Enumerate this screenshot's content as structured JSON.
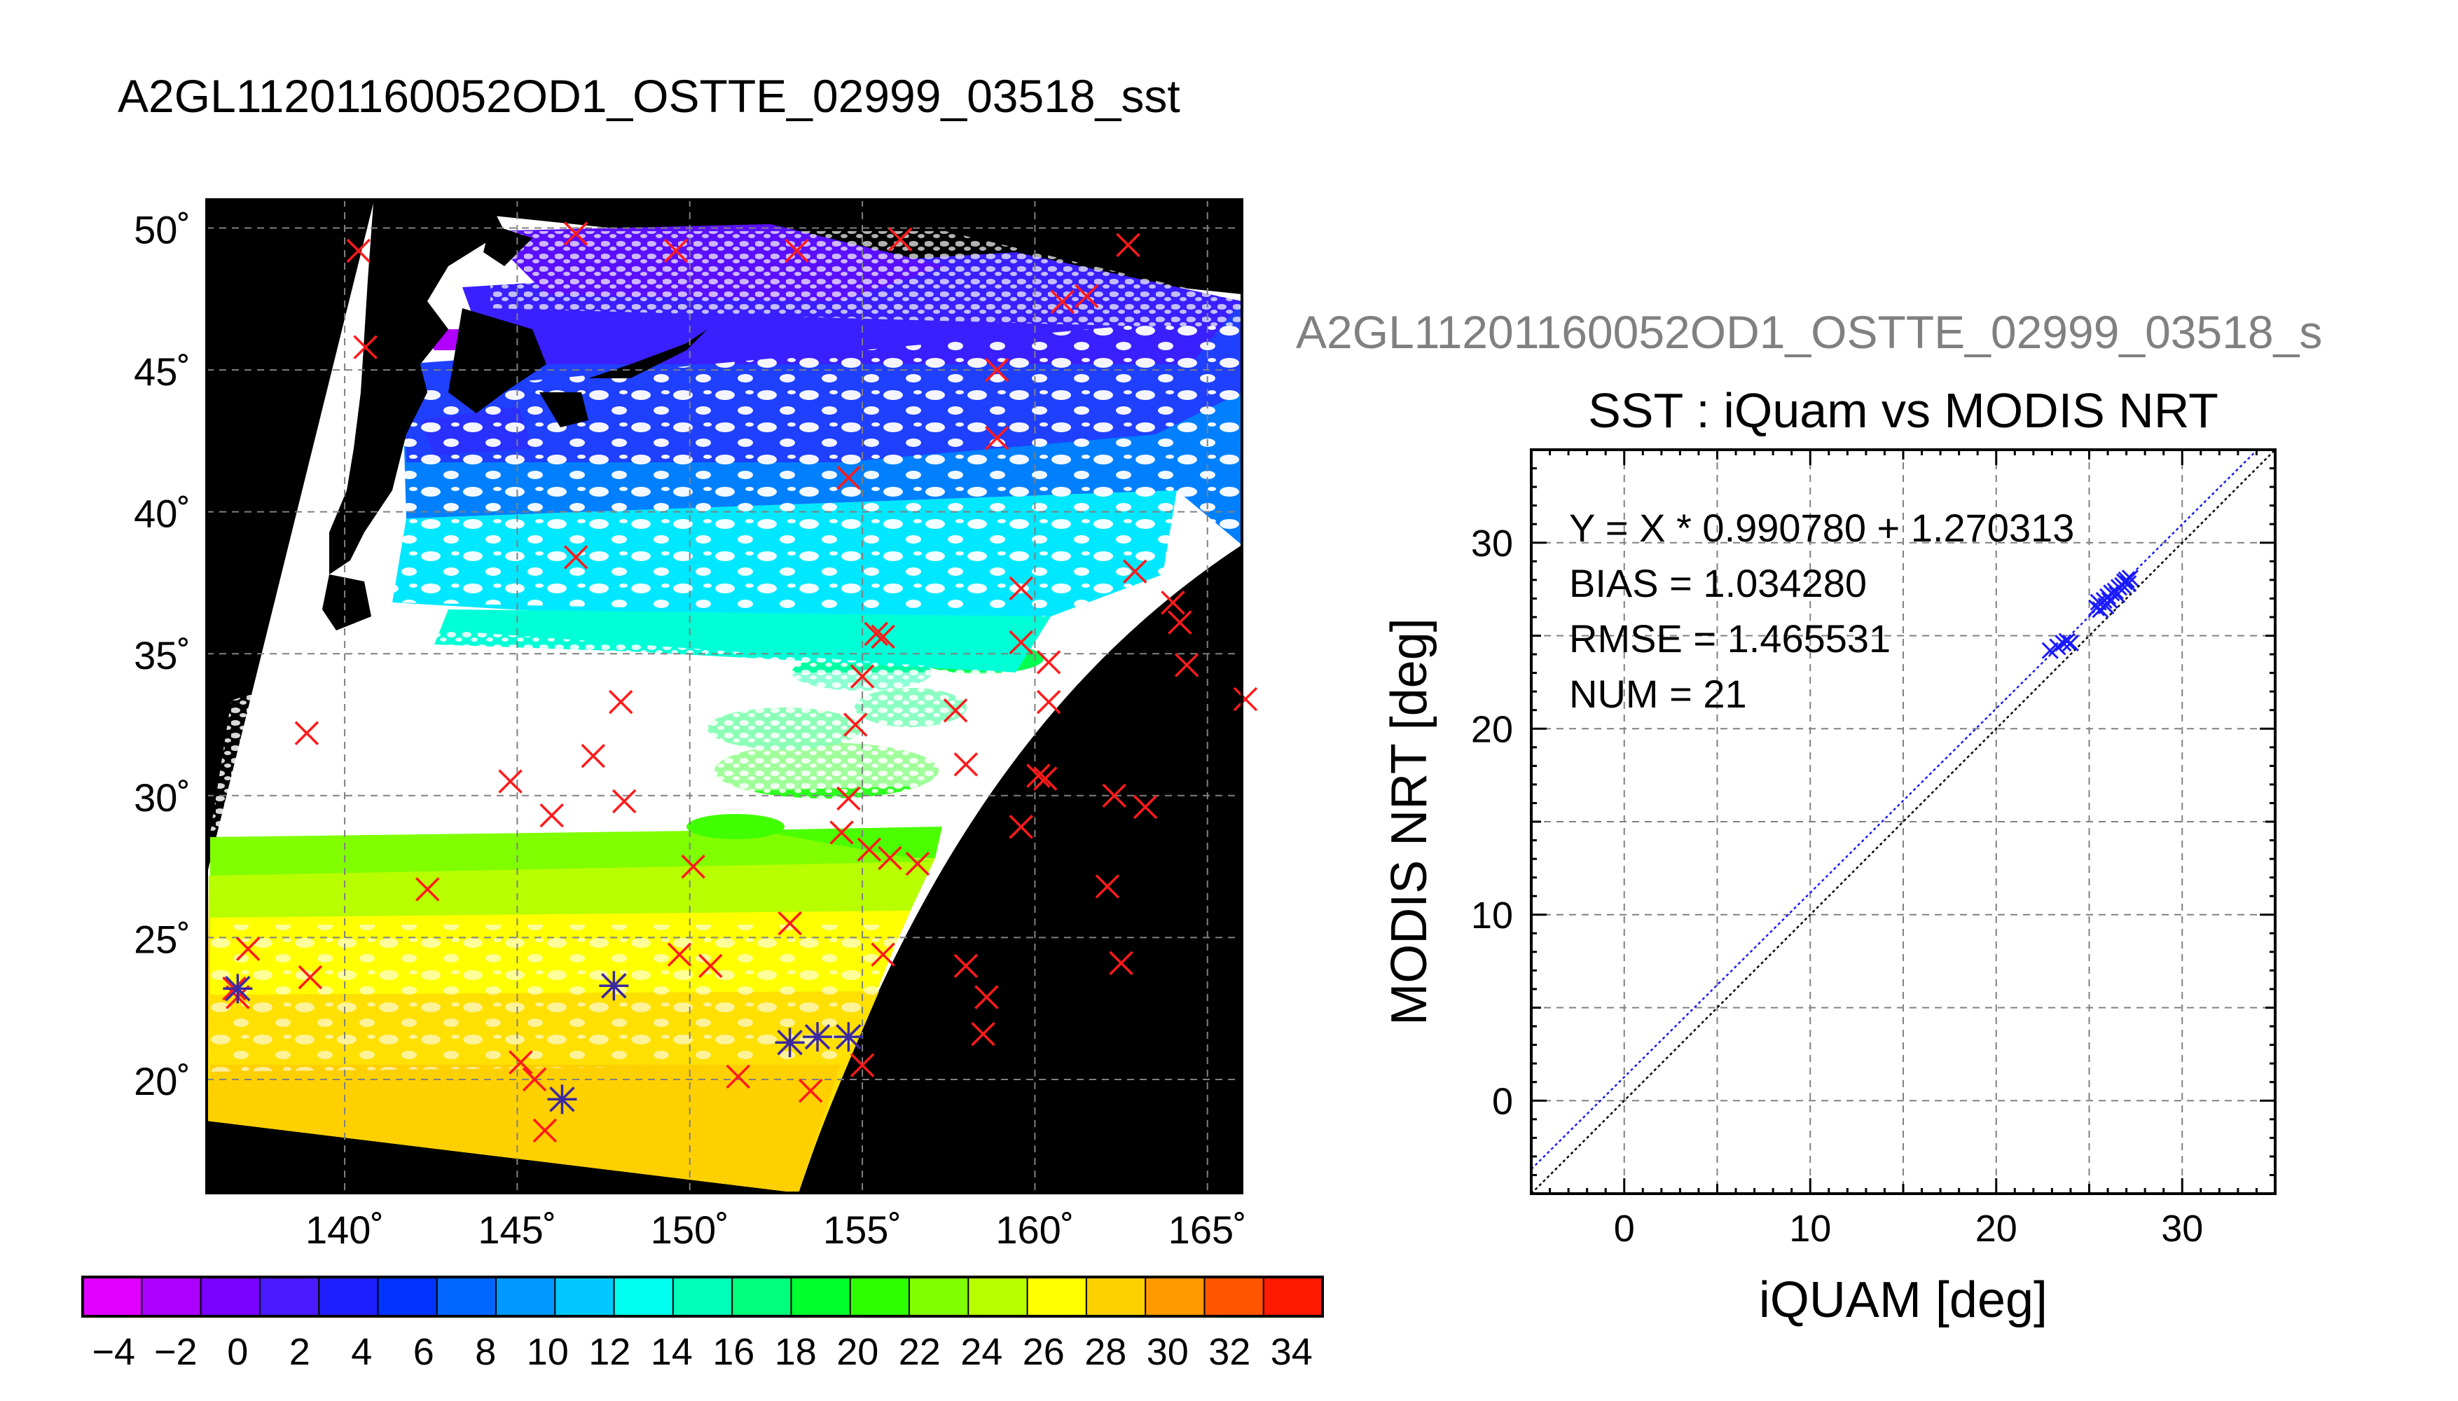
{
  "figure": {
    "title": "A2GL11201160052OD1_OSTTE_02999_03518_sst",
    "subtitle": "A2GL11201160052OD1_OSTTE_02999_03518_s"
  },
  "map": {
    "lon_ticks": [
      "140˚",
      "145˚",
      "150˚",
      "155˚",
      "160˚",
      "165˚"
    ],
    "lat_ticks": [
      "50˚",
      "45˚",
      "40˚",
      "35˚",
      "30˚",
      "25˚",
      "20˚"
    ],
    "lon_range": [
      136,
      166
    ],
    "lat_range": [
      16,
      51
    ],
    "background_color": "#000000",
    "missing_color": "#ffffff",
    "marker_color_all": "#ff1a1a",
    "marker_color_matched": "#3a2aa0",
    "iquam_points": [
      [
        140.4,
        49.2
      ],
      [
        146.7,
        49.8
      ],
      [
        149.6,
        49.2
      ],
      [
        153.1,
        49.2
      ],
      [
        156.1,
        49.6
      ],
      [
        162.7,
        49.4
      ],
      [
        140.6,
        45.8
      ],
      [
        160.8,
        47.4
      ],
      [
        161.5,
        47.6
      ],
      [
        158.9,
        45.0
      ],
      [
        158.9,
        42.6
      ],
      [
        154.6,
        41.2
      ],
      [
        146.7,
        38.4
      ],
      [
        162.9,
        37.9
      ],
      [
        164.0,
        36.8
      ],
      [
        164.2,
        36.1
      ],
      [
        159.6,
        37.3
      ],
      [
        155.4,
        35.7
      ],
      [
        155.6,
        35.6
      ],
      [
        159.6,
        35.4
      ],
      [
        160.4,
        34.7
      ],
      [
        164.4,
        34.6
      ],
      [
        166.1,
        33.4
      ],
      [
        155.0,
        34.2
      ],
      [
        160.4,
        33.3
      ],
      [
        148.0,
        33.3
      ],
      [
        157.7,
        33.0
      ],
      [
        154.8,
        32.5
      ],
      [
        138.9,
        32.2
      ],
      [
        147.2,
        31.4
      ],
      [
        158.0,
        31.1
      ],
      [
        160.1,
        30.7
      ],
      [
        160.3,
        30.6
      ],
      [
        144.8,
        30.5
      ],
      [
        162.3,
        30.0
      ],
      [
        163.2,
        29.6
      ],
      [
        148.1,
        29.8
      ],
      [
        154.6,
        29.9
      ],
      [
        146.0,
        29.3
      ],
      [
        159.6,
        28.9
      ],
      [
        154.4,
        28.7
      ],
      [
        155.2,
        28.1
      ],
      [
        155.8,
        27.8
      ],
      [
        156.6,
        27.6
      ],
      [
        150.1,
        27.5
      ],
      [
        142.4,
        26.7
      ],
      [
        162.1,
        26.8
      ],
      [
        152.9,
        25.5
      ],
      [
        137.2,
        24.6
      ],
      [
        149.7,
        24.4
      ],
      [
        150.6,
        24.0
      ],
      [
        155.6,
        24.4
      ],
      [
        158.0,
        24.0
      ],
      [
        162.5,
        24.1
      ],
      [
        139.0,
        23.6
      ],
      [
        136.8,
        23.2
      ],
      [
        136.9,
        22.9
      ],
      [
        158.6,
        22.9
      ],
      [
        147.8,
        23.3
      ],
      [
        158.5,
        21.6
      ],
      [
        152.9,
        21.3
      ],
      [
        153.7,
        21.5
      ],
      [
        154.6,
        21.5
      ],
      [
        145.1,
        20.6
      ],
      [
        145.5,
        20.0
      ],
      [
        151.4,
        20.1
      ],
      [
        153.5,
        19.6
      ],
      [
        155.0,
        20.5
      ],
      [
        146.3,
        19.3
      ],
      [
        145.8,
        18.2
      ]
    ],
    "matched_points": [
      [
        136.9,
        23.2
      ],
      [
        147.8,
        23.3
      ],
      [
        152.9,
        21.3
      ],
      [
        153.7,
        21.5
      ],
      [
        154.6,
        21.5
      ],
      [
        146.3,
        19.3
      ]
    ]
  },
  "colorbar": {
    "min": -5,
    "max": 35,
    "tick_labels": [
      "−4",
      "−2",
      "0",
      "2",
      "4",
      "6",
      "8",
      "10",
      "12",
      "14",
      "16",
      "18",
      "20",
      "22",
      "24",
      "26",
      "28",
      "30",
      "32",
      "34"
    ],
    "colors": [
      "#e000ff",
      "#ab00ff",
      "#7a00ff",
      "#4a1aff",
      "#1f1fff",
      "#0033ff",
      "#0066ff",
      "#0099ff",
      "#00c8ff",
      "#00fff0",
      "#00ffb8",
      "#00ff7a",
      "#00ff2e",
      "#2eff00",
      "#80ff00",
      "#b8ff00",
      "#ffff00",
      "#ffd000",
      "#ff9900",
      "#ff5500",
      "#ff1a00"
    ]
  },
  "chart_data": [
    {
      "type": "scatter",
      "title": "SST : iQuam vs MODIS NRT",
      "xlabel": "iQUAM [deg]",
      "ylabel": "MODIS NRT [deg]",
      "xlim": [
        -5,
        35
      ],
      "ylim": [
        -5,
        35
      ],
      "x_ticks": [
        "0",
        "10",
        "20",
        "30"
      ],
      "y_ticks": [
        "0",
        "10",
        "20",
        "30"
      ],
      "grid": true,
      "marker_color": "#1a1aff",
      "fit": {
        "slope": 0.99078,
        "intercept": 1.270313,
        "color": "#1a1aff"
      },
      "identity_line_color": "#000000",
      "stats": [
        "Y = X * 0.990780 + 1.270313",
        "BIAS = 1.034280",
        "RMSE = 1.465531",
        "NUM = 21"
      ],
      "points": [
        [
          22.9,
          24.2
        ],
        [
          23.3,
          24.4
        ],
        [
          23.6,
          24.6
        ],
        [
          23.8,
          24.7
        ],
        [
          24.0,
          24.6
        ],
        [
          25.4,
          26.5
        ],
        [
          25.5,
          26.8
        ],
        [
          25.6,
          26.4
        ],
        [
          25.8,
          26.9
        ],
        [
          25.9,
          26.6
        ],
        [
          26.0,
          27.1
        ],
        [
          26.1,
          26.9
        ],
        [
          26.2,
          27.3
        ],
        [
          26.4,
          27.4
        ],
        [
          26.5,
          27.2
        ],
        [
          26.6,
          27.6
        ],
        [
          26.8,
          27.7
        ],
        [
          26.9,
          27.9
        ],
        [
          27.0,
          28.0
        ],
        [
          27.1,
          27.8
        ],
        [
          27.2,
          28.1
        ]
      ]
    }
  ]
}
